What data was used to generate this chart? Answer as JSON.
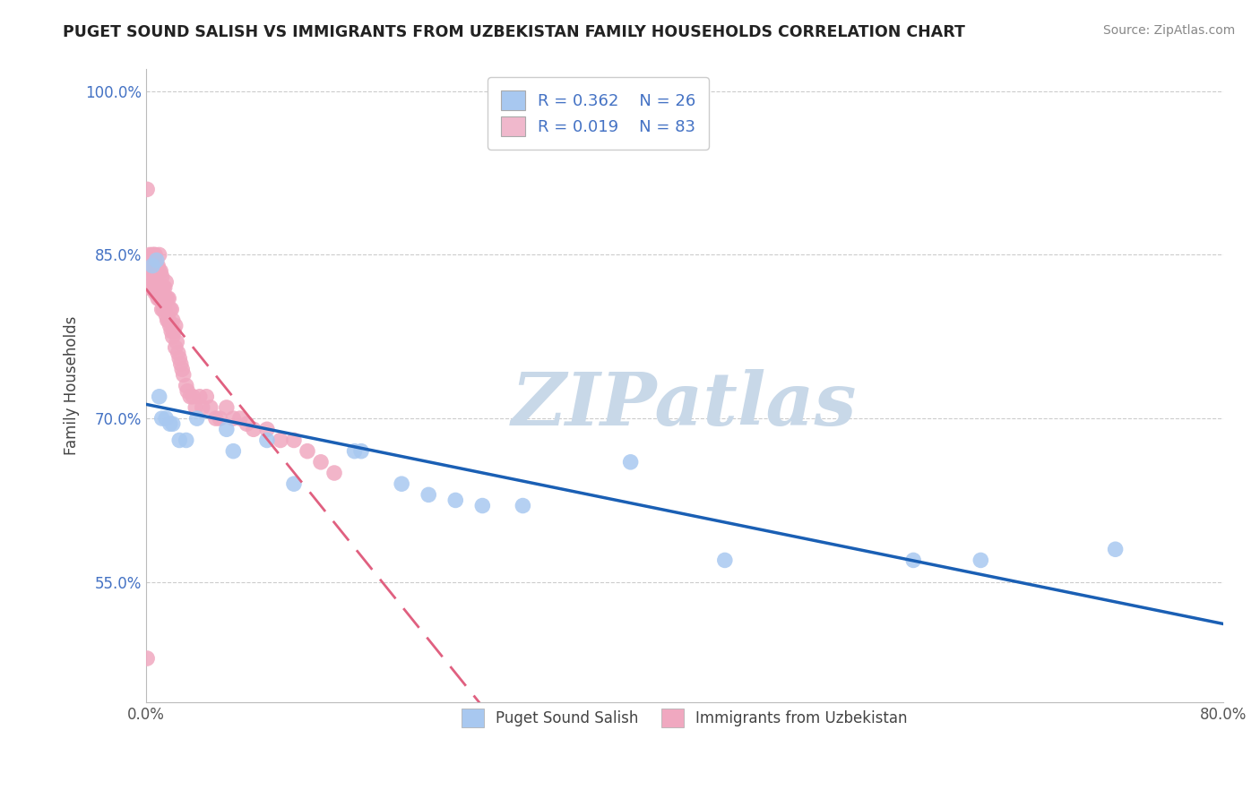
{
  "title": "PUGET SOUND SALISH VS IMMIGRANTS FROM UZBEKISTAN FAMILY HOUSEHOLDS CORRELATION CHART",
  "source": "Source: ZipAtlas.com",
  "ylabel": "Family Households",
  "xlim": [
    0.0,
    0.8
  ],
  "ylim": [
    0.44,
    1.02
  ],
  "yticks": [
    0.55,
    0.7,
    0.85,
    1.0
  ],
  "ytick_labels": [
    "55.0%",
    "70.0%",
    "85.0%",
    "100.0%"
  ],
  "xticks": [
    0.0,
    0.1,
    0.2,
    0.3,
    0.4,
    0.5,
    0.6,
    0.7,
    0.8
  ],
  "xtick_labels": [
    "0.0%",
    "",
    "",
    "",
    "",
    "",
    "",
    "",
    "80.0%"
  ],
  "blue_R": 0.362,
  "blue_N": 26,
  "pink_R": 0.019,
  "pink_N": 83,
  "blue_color": "#a8c8f0",
  "pink_color": "#f0a8c0",
  "blue_line_color": "#1a5fb4",
  "pink_line_color": "#e06080",
  "legend_blue_patch": "#a8c8f0",
  "legend_pink_patch": "#f0b8cc",
  "watermark": "ZIPatlas",
  "watermark_color": "#c8d8e8",
  "blue_points_x": [
    0.005,
    0.008,
    0.01,
    0.012,
    0.015,
    0.018,
    0.02,
    0.025,
    0.03,
    0.038,
    0.06,
    0.065,
    0.09,
    0.11,
    0.155,
    0.16,
    0.19,
    0.21,
    0.23,
    0.25,
    0.28,
    0.36,
    0.43,
    0.57,
    0.62,
    0.72
  ],
  "blue_points_y": [
    0.84,
    0.845,
    0.72,
    0.7,
    0.7,
    0.695,
    0.695,
    0.68,
    0.68,
    0.7,
    0.69,
    0.67,
    0.68,
    0.64,
    0.67,
    0.67,
    0.64,
    0.63,
    0.625,
    0.62,
    0.62,
    0.66,
    0.57,
    0.57,
    0.57,
    0.58
  ],
  "pink_points_x": [
    0.001,
    0.001,
    0.002,
    0.002,
    0.003,
    0.003,
    0.003,
    0.004,
    0.004,
    0.005,
    0.005,
    0.005,
    0.006,
    0.006,
    0.006,
    0.007,
    0.007,
    0.007,
    0.008,
    0.008,
    0.008,
    0.009,
    0.009,
    0.009,
    0.01,
    0.01,
    0.01,
    0.01,
    0.011,
    0.011,
    0.011,
    0.012,
    0.012,
    0.012,
    0.013,
    0.013,
    0.014,
    0.014,
    0.015,
    0.015,
    0.015,
    0.016,
    0.016,
    0.017,
    0.017,
    0.018,
    0.018,
    0.019,
    0.019,
    0.02,
    0.02,
    0.021,
    0.022,
    0.022,
    0.023,
    0.024,
    0.025,
    0.026,
    0.027,
    0.028,
    0.03,
    0.031,
    0.033,
    0.035,
    0.037,
    0.04,
    0.042,
    0.045,
    0.048,
    0.052,
    0.055,
    0.06,
    0.065,
    0.07,
    0.075,
    0.08,
    0.09,
    0.1,
    0.11,
    0.12,
    0.13,
    0.14,
    0.001
  ],
  "pink_points_y": [
    0.91,
    0.84,
    0.82,
    0.84,
    0.82,
    0.84,
    0.85,
    0.82,
    0.84,
    0.82,
    0.83,
    0.85,
    0.82,
    0.83,
    0.85,
    0.815,
    0.83,
    0.85,
    0.815,
    0.825,
    0.84,
    0.81,
    0.82,
    0.84,
    0.81,
    0.82,
    0.835,
    0.85,
    0.81,
    0.82,
    0.835,
    0.8,
    0.815,
    0.83,
    0.8,
    0.82,
    0.8,
    0.82,
    0.795,
    0.81,
    0.825,
    0.79,
    0.81,
    0.79,
    0.81,
    0.785,
    0.8,
    0.78,
    0.8,
    0.775,
    0.79,
    0.78,
    0.765,
    0.785,
    0.77,
    0.76,
    0.755,
    0.75,
    0.745,
    0.74,
    0.73,
    0.725,
    0.72,
    0.72,
    0.71,
    0.72,
    0.71,
    0.72,
    0.71,
    0.7,
    0.7,
    0.71,
    0.7,
    0.7,
    0.695,
    0.69,
    0.69,
    0.68,
    0.68,
    0.67,
    0.66,
    0.65,
    0.48
  ]
}
